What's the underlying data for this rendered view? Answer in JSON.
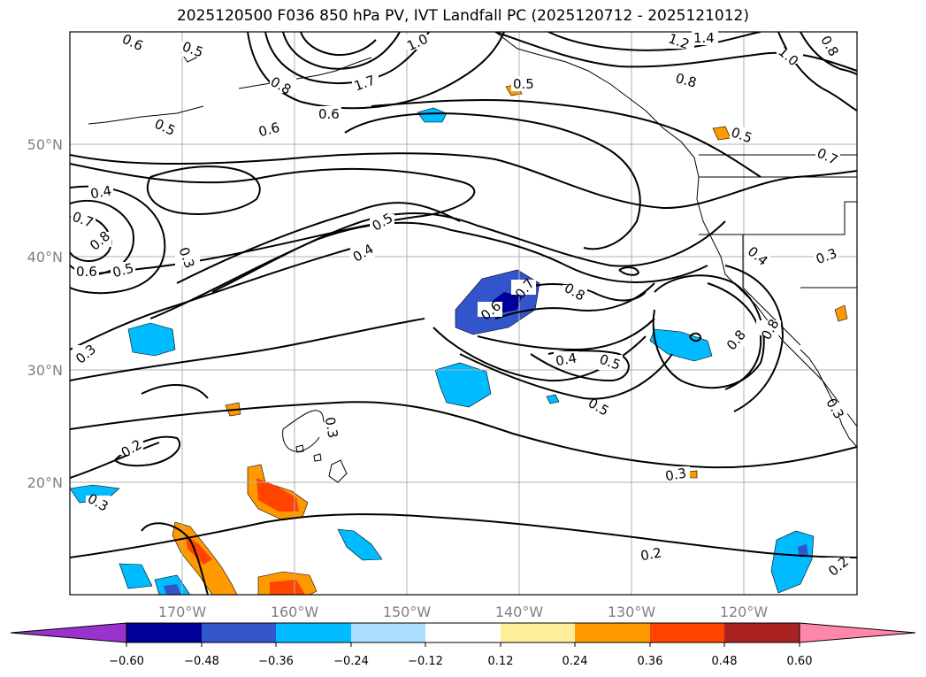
{
  "title": "2025120500 F036 850 hPa PV, IVT Landfall PC (2025120712 - 2025121012)",
  "map": {
    "projection": "PlateCarree",
    "extent": {
      "lon_min": -180,
      "lon_max": -110,
      "lat_min": 10,
      "lat_max": 60
    },
    "lon_ticks": [
      "170°W",
      "160°W",
      "150°W",
      "140°W",
      "130°W",
      "120°W"
    ],
    "lat_ticks": [
      "50°N",
      "40°N",
      "30°N",
      "20°N"
    ],
    "grid": true,
    "coastlines": true
  },
  "contour_labels": [
    "0.6",
    "0.5",
    "1.0",
    "1.2",
    "1.4",
    "0.8",
    "0.8",
    "1.0",
    "1.7",
    "0.5",
    "0.8",
    "0.6",
    "0.5",
    "0.6",
    "0.5",
    "0.7",
    "0.4",
    "0.7",
    "0.8",
    "0.6",
    "0.5",
    "0.3",
    "0.5",
    "0.4",
    "0.4",
    "0.3",
    "0.7",
    "0.8",
    "0.6",
    "0.8",
    "0.4",
    "0.5",
    "0.5",
    "0.8",
    "0.3",
    "0.3",
    "0.2",
    "0.3",
    "0.3",
    "0.2",
    "0.2",
    "0.3"
  ],
  "colorbar": {
    "labels": [
      "−0.60",
      "−0.48",
      "−0.36",
      "−0.24",
      "−0.12",
      "0.12",
      "0.24",
      "0.36",
      "0.48",
      "0.60"
    ],
    "colors": [
      "#9933cc",
      "#000099",
      "#3355cc",
      "#00bbff",
      "#aaddff",
      "#ffffff",
      "#ffee99",
      "#ff9900",
      "#ff4400",
      "#aa2222",
      "#ff88aa"
    ]
  }
}
